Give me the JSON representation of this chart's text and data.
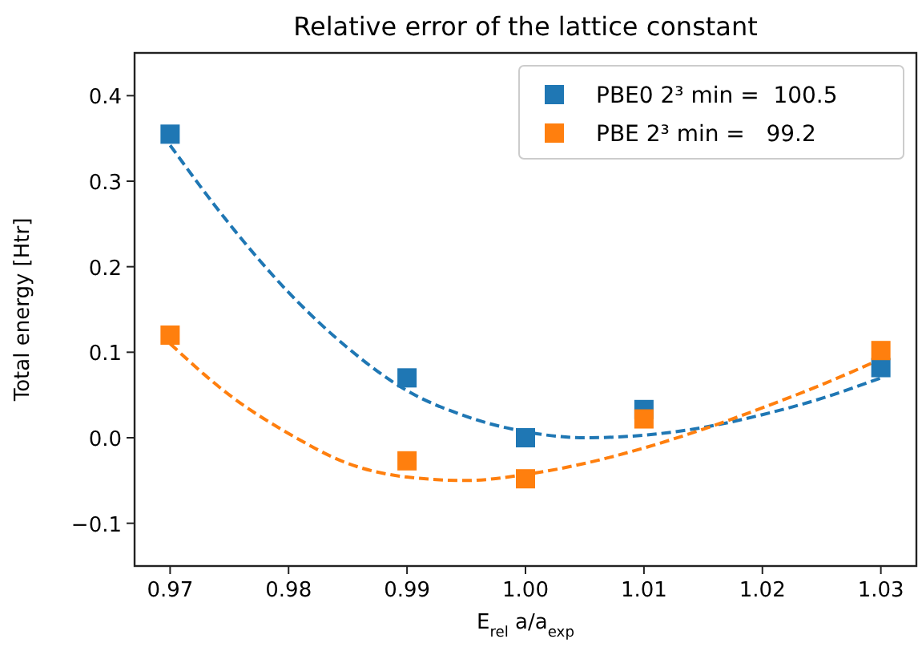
{
  "chart_data": {
    "type": "scatter",
    "title": "Relative error of the lattice constant",
    "xlabel": "E$_{rel}$ a/a$_{exp}$",
    "ylabel": "Total energy [Htr]",
    "x": [
      0.97,
      0.99,
      1.0,
      1.01,
      1.03
    ],
    "xlim": [
      0.967,
      1.033
    ],
    "xticks": [
      {
        "value": 0.97,
        "label": "0.97"
      },
      {
        "value": 0.98,
        "label": "0.98"
      },
      {
        "value": 0.99,
        "label": "0.99"
      },
      {
        "value": 1.0,
        "label": "1.00"
      },
      {
        "value": 1.01,
        "label": "1.01"
      },
      {
        "value": 1.02,
        "label": "1.02"
      },
      {
        "value": 1.03,
        "label": "1.03"
      }
    ],
    "ylim": [
      -0.15,
      0.45
    ],
    "yticks": [
      {
        "value": -0.1,
        "label": "−0.1"
      },
      {
        "value": 0,
        "label": "0.0"
      },
      {
        "value": 0.1,
        "label": "0.1"
      },
      {
        "value": 0.2,
        "label": "0.2"
      },
      {
        "value": 0.3,
        "label": "0.3"
      },
      {
        "value": 0.4,
        "label": "0.4"
      }
    ],
    "grid": false,
    "legend": "top right",
    "marker": "square",
    "series": [
      {
        "type": "line",
        "color": "#1f77b4",
        "line_style": "dashed",
        "marker": "none",
        "x": [
          0.97,
          0.975,
          0.98,
          0.985,
          0.99,
          0.995,
          1.0,
          1.005,
          1.01,
          1.015,
          1.02,
          1.025,
          1.03
        ],
        "values": [
          0.342,
          0.25,
          0.17,
          0.105,
          0.055,
          0.025,
          0.007,
          0.0,
          0.003,
          0.012,
          0.027,
          0.046,
          0.07
        ]
      },
      {
        "type": "line",
        "color": "#ff7f0e",
        "line_style": "dashed",
        "marker": "none",
        "x": [
          0.97,
          0.975,
          0.98,
          0.985,
          0.99,
          0.995,
          1.0,
          1.005,
          1.01,
          1.015,
          1.02,
          1.025,
          1.03
        ],
        "values": [
          0.11,
          0.05,
          0.005,
          -0.03,
          -0.046,
          -0.05,
          -0.043,
          -0.03,
          -0.012,
          0.01,
          0.035,
          0.062,
          0.092
        ]
      },
      {
        "name": "PBE0 2³ min =  100.5",
        "color": "#1f77b4",
        "values": [
          0.355,
          0.07,
          0.0,
          0.033,
          0.082
        ]
      },
      {
        "name": "PBE 2³ min =   99.2",
        "color": "#ff7f0e",
        "values": [
          0.12,
          -0.027,
          -0.048,
          0.022,
          0.102
        ]
      }
    ]
  }
}
